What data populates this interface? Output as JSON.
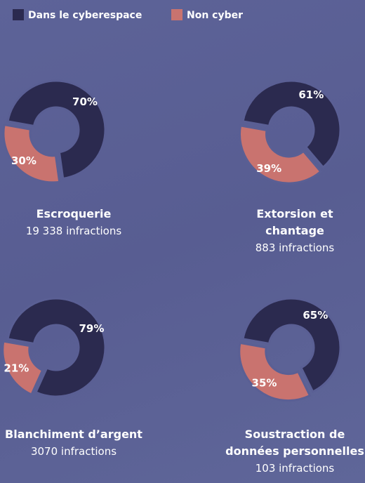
{
  "chart_data": [
    {
      "type": "pie",
      "donut": true,
      "title": "Escroquerie",
      "subtitle": "19 338 infractions",
      "categories": [
        "Dans le cyberespace",
        "Non cyber"
      ],
      "values": [
        70,
        30
      ],
      "value_labels": [
        "70%",
        "30%"
      ],
      "colors": [
        "#2b2a4f",
        "#c9736f"
      ]
    },
    {
      "type": "pie",
      "donut": true,
      "title": "Extorsion et chantage",
      "subtitle": "883 infractions",
      "categories": [
        "Dans le cyberespace",
        "Non cyber"
      ],
      "values": [
        61,
        39
      ],
      "value_labels": [
        "61%",
        "39%"
      ],
      "colors": [
        "#2b2a4f",
        "#c9736f"
      ]
    },
    {
      "type": "pie",
      "donut": true,
      "title": "Blanchiment d’argent",
      "subtitle": "3070 infractions",
      "categories": [
        "Dans le cyberespace",
        "Non cyber"
      ],
      "values": [
        79,
        21
      ],
      "value_labels": [
        "79%",
        "21%"
      ],
      "colors": [
        "#2b2a4f",
        "#c9736f"
      ]
    },
    {
      "type": "pie",
      "donut": true,
      "title": "Soustraction de données personnelles",
      "subtitle": "103 infractions",
      "categories": [
        "Dans le cyberespace",
        "Non cyber"
      ],
      "values": [
        65,
        35
      ],
      "value_labels": [
        "65%",
        "35%"
      ],
      "colors": [
        "#2b2a4f",
        "#c9736f"
      ]
    }
  ]
}
